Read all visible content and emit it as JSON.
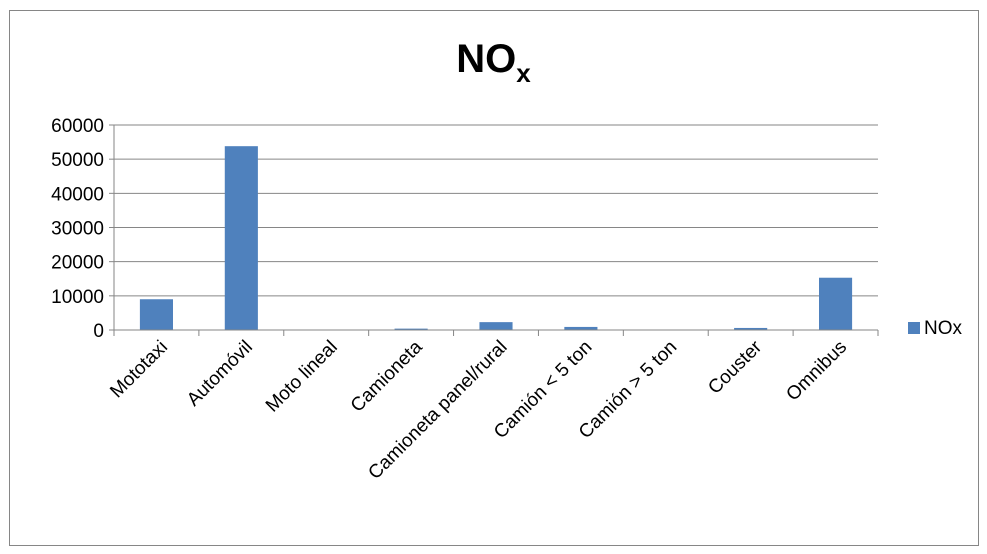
{
  "chart_data": {
    "type": "bar",
    "title": "NO",
    "title_subscript": "x",
    "categories": [
      "Mototaxi",
      "Automóvil",
      "Moto lineal",
      "Camioneta",
      "Camioneta panel/rural",
      "Camión < 5 ton",
      "Camión > 5 ton",
      "Couster",
      "Omnibus"
    ],
    "series": [
      {
        "name": "NOx",
        "values": [
          9000,
          53800,
          0,
          400,
          2300,
          900,
          0,
          600,
          15300
        ]
      }
    ],
    "ylim": [
      0,
      60000
    ],
    "yticks": [
      "0",
      "10000",
      "20000",
      "30000",
      "40000",
      "50000",
      "60000"
    ],
    "grid": true,
    "legend_position": "right",
    "bar_color": "#4f81bd"
  }
}
